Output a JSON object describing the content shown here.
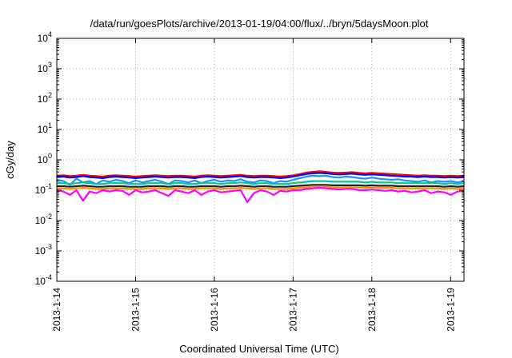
{
  "chart_data": {
    "type": "line",
    "title": "/data/run/goesPlots/archive/2013-01-19/04:00/flux/../bryn/5daysMoon.plot",
    "xlabel": "Coordinated Universal Time (UTC)",
    "ylabel": "cGy/day",
    "y_scale": "log",
    "ylim": [
      0.0001,
      10000
    ],
    "y_ticks": [
      {
        "base": "10",
        "exp": "4",
        "value": 10000
      },
      {
        "base": "10",
        "exp": "3",
        "value": 1000
      },
      {
        "base": "10",
        "exp": "2",
        "value": 100
      },
      {
        "base": "10",
        "exp": "1",
        "value": 10
      },
      {
        "base": "10",
        "exp": "0",
        "value": 1
      },
      {
        "base": "10",
        "exp": "-1",
        "value": 0.1
      },
      {
        "base": "10",
        "exp": "-2",
        "value": 0.01
      },
      {
        "base": "10",
        "exp": "-3",
        "value": 0.001
      },
      {
        "base": "10",
        "exp": "-4",
        "value": 0.0001
      }
    ],
    "x_ticks": [
      "2013-1-14",
      "2013-1-15",
      "2013-1-16",
      "2013-1-17",
      "2013-1-18",
      "2013-1-19"
    ],
    "x_tick_values": [
      0,
      1,
      2,
      3,
      4,
      5
    ],
    "xlim": [
      0,
      5.17
    ],
    "grid": true,
    "series": [
      {
        "color": "#ff0000",
        "values": [
          0.3,
          0.31,
          0.29,
          0.3,
          0.32,
          0.3,
          0.29,
          0.28,
          0.3,
          0.31,
          0.3,
          0.29,
          0.28,
          0.29,
          0.3,
          0.31,
          0.3,
          0.29,
          0.3,
          0.3,
          0.29,
          0.28,
          0.3,
          0.31,
          0.3,
          0.29,
          0.3,
          0.31,
          0.32,
          0.3,
          0.29,
          0.3,
          0.3,
          0.29,
          0.28,
          0.29,
          0.31,
          0.34,
          0.38,
          0.4,
          0.42,
          0.4,
          0.38,
          0.37,
          0.38,
          0.39,
          0.37,
          0.36,
          0.37,
          0.36,
          0.35,
          0.34,
          0.33,
          0.32,
          0.31,
          0.3,
          0.31,
          0.3,
          0.3,
          0.29,
          0.3,
          0.29,
          0.3
        ]
      },
      {
        "color": "#0000ff",
        "values": [
          0.27,
          0.28,
          0.26,
          0.27,
          0.29,
          0.27,
          0.26,
          0.25,
          0.27,
          0.28,
          0.27,
          0.26,
          0.25,
          0.26,
          0.27,
          0.28,
          0.27,
          0.26,
          0.27,
          0.27,
          0.26,
          0.25,
          0.27,
          0.28,
          0.27,
          0.26,
          0.27,
          0.28,
          0.29,
          0.27,
          0.26,
          0.27,
          0.27,
          0.26,
          0.25,
          0.26,
          0.28,
          0.31,
          0.34,
          0.36,
          0.37,
          0.36,
          0.34,
          0.33,
          0.34,
          0.35,
          0.33,
          0.32,
          0.33,
          0.32,
          0.31,
          0.3,
          0.29,
          0.28,
          0.28,
          0.27,
          0.28,
          0.27,
          0.27,
          0.26,
          0.27,
          0.26,
          0.27
        ]
      },
      {
        "color": "#1e90ff",
        "values": [
          0.22,
          0.2,
          0.15,
          0.24,
          0.18,
          0.2,
          0.16,
          0.21,
          0.19,
          0.22,
          0.2,
          0.17,
          0.21,
          0.18,
          0.2,
          0.22,
          0.19,
          0.16,
          0.21,
          0.2,
          0.18,
          0.21,
          0.17,
          0.2,
          0.22,
          0.19,
          0.21,
          0.2,
          0.23,
          0.19,
          0.18,
          0.21,
          0.2,
          0.17,
          0.2,
          0.19,
          0.22,
          0.25,
          0.28,
          0.3,
          0.29,
          0.3,
          0.27,
          0.26,
          0.28,
          0.27,
          0.25,
          0.24,
          0.26,
          0.24,
          0.23,
          0.22,
          0.23,
          0.21,
          0.2,
          0.19,
          0.21,
          0.18,
          0.2,
          0.19,
          0.2,
          0.18,
          0.2
        ]
      },
      {
        "color": "#00c88c",
        "values": [
          0.17,
          0.17,
          0.16,
          0.17,
          0.18,
          0.17,
          0.16,
          0.16,
          0.17,
          0.17,
          0.17,
          0.16,
          0.16,
          0.16,
          0.17,
          0.17,
          0.17,
          0.16,
          0.17,
          0.17,
          0.16,
          0.16,
          0.17,
          0.17,
          0.17,
          0.16,
          0.17,
          0.17,
          0.18,
          0.17,
          0.16,
          0.17,
          0.17,
          0.16,
          0.16,
          0.16,
          0.17,
          0.18,
          0.19,
          0.2,
          0.2,
          0.2,
          0.19,
          0.19,
          0.19,
          0.19,
          0.19,
          0.18,
          0.19,
          0.18,
          0.18,
          0.18,
          0.17,
          0.17,
          0.17,
          0.17,
          0.17,
          0.17,
          0.17,
          0.16,
          0.17,
          0.16,
          0.17
        ]
      },
      {
        "color": "#222222",
        "values": [
          0.135,
          0.135,
          0.13,
          0.135,
          0.14,
          0.135,
          0.13,
          0.13,
          0.135,
          0.135,
          0.135,
          0.13,
          0.13,
          0.13,
          0.135,
          0.135,
          0.135,
          0.13,
          0.135,
          0.135,
          0.13,
          0.13,
          0.135,
          0.135,
          0.135,
          0.13,
          0.135,
          0.135,
          0.14,
          0.135,
          0.13,
          0.135,
          0.135,
          0.13,
          0.13,
          0.13,
          0.135,
          0.14,
          0.145,
          0.15,
          0.15,
          0.15,
          0.145,
          0.145,
          0.145,
          0.145,
          0.145,
          0.14,
          0.145,
          0.14,
          0.14,
          0.14,
          0.135,
          0.135,
          0.135,
          0.135,
          0.135,
          0.135,
          0.135,
          0.13,
          0.135,
          0.13,
          0.135
        ]
      },
      {
        "color": "#ff8c00",
        "values": [
          0.115,
          0.115,
          0.11,
          0.115,
          0.12,
          0.115,
          0.11,
          0.11,
          0.115,
          0.115,
          0.115,
          0.11,
          0.11,
          0.11,
          0.115,
          0.115,
          0.115,
          0.11,
          0.115,
          0.115,
          0.11,
          0.11,
          0.115,
          0.115,
          0.115,
          0.11,
          0.115,
          0.115,
          0.12,
          0.115,
          0.11,
          0.115,
          0.115,
          0.11,
          0.11,
          0.11,
          0.115,
          0.12,
          0.125,
          0.13,
          0.13,
          0.13,
          0.125,
          0.125,
          0.125,
          0.125,
          0.125,
          0.12,
          0.125,
          0.12,
          0.12,
          0.12,
          0.115,
          0.115,
          0.115,
          0.115,
          0.115,
          0.115,
          0.115,
          0.11,
          0.115,
          0.11,
          0.115
        ]
      },
      {
        "color": "#ff00ff",
        "values": [
          0.1,
          0.09,
          0.07,
          0.1,
          0.045,
          0.09,
          0.08,
          0.1,
          0.09,
          0.1,
          0.095,
          0.07,
          0.1,
          0.085,
          0.09,
          0.1,
          0.08,
          0.065,
          0.1,
          0.09,
          0.08,
          0.1,
          0.07,
          0.09,
          0.1,
          0.085,
          0.09,
          0.095,
          0.1,
          0.04,
          0.08,
          0.1,
          0.09,
          0.07,
          0.095,
          0.09,
          0.1,
          0.1,
          0.11,
          0.115,
          0.12,
          0.115,
          0.11,
          0.105,
          0.11,
          0.11,
          0.1,
          0.1,
          0.105,
          0.1,
          0.095,
          0.1,
          0.09,
          0.095,
          0.085,
          0.09,
          0.1,
          0.08,
          0.09,
          0.085,
          0.07,
          0.09,
          0.095
        ]
      }
    ]
  }
}
